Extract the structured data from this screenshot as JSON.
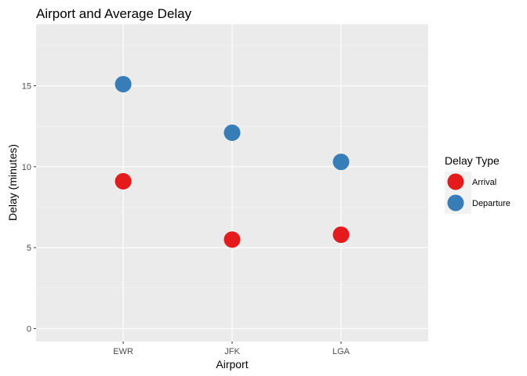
{
  "chart_data": {
    "type": "scatter",
    "title": "Airport and Average Delay",
    "xlabel": "Airport",
    "ylabel": "Delay (minutes)",
    "categories": [
      "EWR",
      "JFK",
      "LGA"
    ],
    "y_ticks": [
      0,
      5,
      10,
      15
    ],
    "ylim": [
      -0.8,
      18.8
    ],
    "grid": true,
    "legend": {
      "title": "Delay Type",
      "placement": "right"
    },
    "series": [
      {
        "name": "Arrival",
        "color": "#e41a1c",
        "values": [
          9.1,
          5.5,
          5.8
        ]
      },
      {
        "name": "Departure",
        "color": "#377eb8",
        "values": [
          15.1,
          12.1,
          10.3
        ]
      }
    ]
  }
}
